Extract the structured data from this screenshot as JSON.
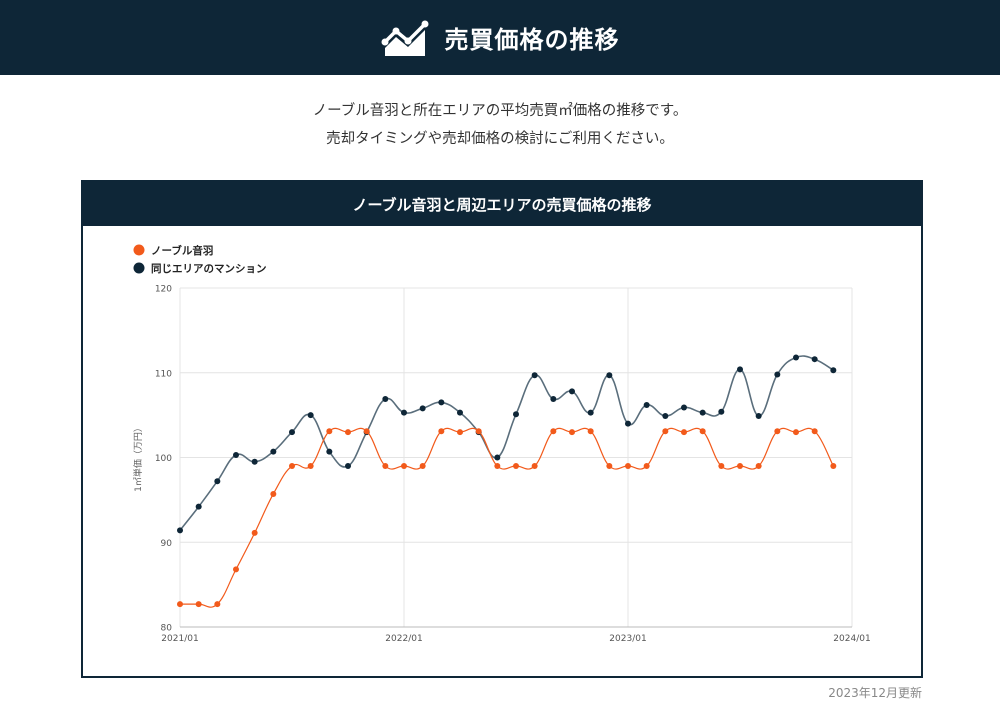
{
  "page": {
    "title": "売買価格の推移",
    "intro_line1": "ノーブル音羽と所在エリアの平均売買㎡価格の推移です。",
    "intro_line2": "売却タイミングや売却価格の検討にご利用ください。",
    "updated": "2023年12月更新"
  },
  "colors": {
    "header_bg": "#0e2637",
    "series_noble": "#f25a1b",
    "series_area": "#0e2637"
  },
  "chart_data": {
    "type": "line",
    "title": "ノーブル音羽と周辺エリアの売買価格の推移",
    "ylabel": "1㎡単価（万円）",
    "ylim": [
      80,
      120
    ],
    "yticks": [
      80,
      90,
      100,
      110,
      120
    ],
    "xticks": [
      "2021/01",
      "2022/01",
      "2023/01",
      "2024/01"
    ],
    "grid": true,
    "legend": "top-left",
    "x": [
      "2021/01",
      "2021/02",
      "2021/03",
      "2021/04",
      "2021/05",
      "2021/06",
      "2021/07",
      "2021/08",
      "2021/09",
      "2021/10",
      "2021/11",
      "2021/12",
      "2022/01",
      "2022/02",
      "2022/03",
      "2022/04",
      "2022/05",
      "2022/06",
      "2022/07",
      "2022/08",
      "2022/09",
      "2022/10",
      "2022/11",
      "2022/12",
      "2023/01",
      "2023/02",
      "2023/03",
      "2023/04",
      "2023/05",
      "2023/06",
      "2023/07",
      "2023/08",
      "2023/09",
      "2023/10",
      "2023/11",
      "2023/12"
    ],
    "series": [
      {
        "name": "ノーブル音羽",
        "color": "#f25a1b",
        "values": [
          82.7,
          82.7,
          82.7,
          86.8,
          91.1,
          95.7,
          99.0,
          99.0,
          103.1,
          103.0,
          103.1,
          99.0,
          99.0,
          99.0,
          103.1,
          103.0,
          103.1,
          99.0,
          99.0,
          99.0,
          103.1,
          103.0,
          103.1,
          99.0,
          99.0,
          99.0,
          103.1,
          103.0,
          103.1,
          99.0,
          99.0,
          99.0,
          103.1,
          103.0,
          103.1,
          99.0
        ]
      },
      {
        "name": "同じエリアのマンション",
        "color": "#0e2637",
        "values": [
          91.4,
          94.2,
          97.2,
          100.3,
          99.5,
          100.7,
          103.0,
          105.0,
          100.7,
          99.0,
          103.0,
          106.9,
          105.3,
          105.8,
          106.5,
          105.3,
          103.0,
          100.0,
          105.1,
          109.7,
          106.9,
          107.8,
          105.3,
          109.7,
          104.0,
          106.2,
          104.9,
          105.9,
          105.3,
          105.4,
          110.4,
          104.9,
          109.8,
          111.8,
          111.6,
          110.3
        ]
      }
    ]
  }
}
